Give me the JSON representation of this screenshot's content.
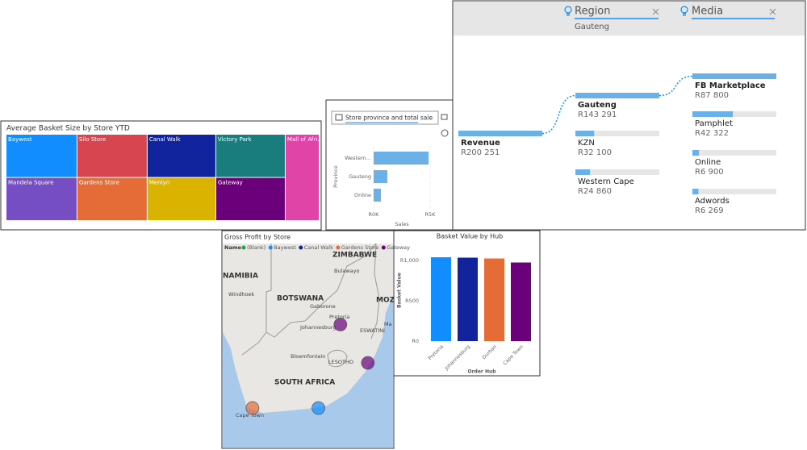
{
  "chart_data": [
    {
      "type": "treemap",
      "title": "Average Basket Size by Store YTD",
      "categories": [
        "Baywest",
        "Silo Store",
        "Canal Walk",
        "Victory Park",
        "Mall of Afri...",
        "Mandela Square",
        "Gardens Store",
        "Menlyn",
        "Gateway"
      ],
      "values": [
        470,
        465,
        455,
        460,
        450,
        470,
        465,
        455,
        460
      ],
      "colors": [
        "#118DFF",
        "#D64550",
        "#12239E",
        "#1A7D7D",
        "#E044A7",
        "#744EC2",
        "#E66C37",
        "#D9B300",
        "#6B007B"
      ]
    },
    {
      "type": "hbar",
      "search_placeholder": "Store province and total sale",
      "categories": [
        "Western...",
        "Gauteng",
        "Online"
      ],
      "values": [
        4860,
        1214,
        640
      ],
      "color": "#6CB0E8",
      "xlim": [
        0,
        5000
      ],
      "xticks": [
        {
          "value": 0,
          "label": "R0K"
        },
        {
          "value": 5000,
          "label": "R5K"
        }
      ],
      "xlabel": "Sales",
      "ylabel": "Province"
    },
    {
      "type": "bar",
      "title": "Basket Value by Hub",
      "categories": [
        "Pretoria",
        "Johannesburg",
        "Durban",
        "Cape Town"
      ],
      "values": [
        1040,
        1035,
        1025,
        975
      ],
      "colors": [
        "#118DFF",
        "#12239E",
        "#E66C37",
        "#6B007B"
      ],
      "ylim": [
        0,
        1080
      ],
      "yticks": [
        {
          "value": 0,
          "label": "R0"
        },
        {
          "value": 500,
          "label": "R500"
        },
        {
          "value": 1000,
          "label": "R1,000"
        }
      ],
      "xlabel": "Order Hub",
      "ylabel": "Basket Value"
    }
  ],
  "decomposition_tree": {
    "filters": [
      {
        "field": "Region",
        "value": "Gauteng"
      },
      {
        "field": "Media"
      }
    ],
    "root": {
      "label": "Revenue",
      "value": 200251,
      "value_label": "R200 251"
    },
    "levels": [
      [
        {
          "label": "Gauteng",
          "value": 143291,
          "value_label": "R143 291"
        },
        {
          "label": "KZN",
          "value": 32100,
          "value_label": "R32 100"
        },
        {
          "label": "Western Cape",
          "value": 24860,
          "value_label": "R24 860"
        }
      ],
      [
        {
          "label": "FB Marketplace",
          "value": 87800,
          "value_label": "R87 800"
        },
        {
          "label": "Pamphlet",
          "value": 42322,
          "value_label": "R42 322"
        },
        {
          "label": "Online",
          "value": 6900,
          "value_label": "R6 900"
        },
        {
          "label": "Adwords",
          "value": 6269,
          "value_label": "R6 269"
        }
      ]
    ]
  },
  "map": {
    "title": "Gross Profit by Store",
    "legend_title": "Name",
    "legend": [
      {
        "name": "(Blank)",
        "color": "#1AAB40"
      },
      {
        "name": "Baywest",
        "color": "#118DFF"
      },
      {
        "name": "Canal Walk",
        "color": "#12239E"
      },
      {
        "name": "Gardens Store",
        "color": "#E66C37"
      },
      {
        "name": "Gateway",
        "color": "#6B007B"
      }
    ],
    "labels": [
      "NAMIBIA",
      "Windhoek",
      "BOTSWANA",
      "Gaborone",
      "ZIMBABWE",
      "Bulawayo",
      "MOZ",
      "Pretoria",
      "Johannesburg",
      "ESWATINI",
      "Ma",
      "Bloemfontein",
      "LESOTHO",
      "SOUTH AFRICA",
      "Cape Town"
    ],
    "points": [
      {
        "series": 4,
        "lon": 28.0,
        "lat": -26.5
      },
      {
        "series": 4,
        "lon": 31.0,
        "lat": -29.9
      },
      {
        "series": 3,
        "lon": 18.4,
        "lat": -33.9
      },
      {
        "series": 1,
        "lon": 25.6,
        "lat": -33.9
      }
    ]
  }
}
